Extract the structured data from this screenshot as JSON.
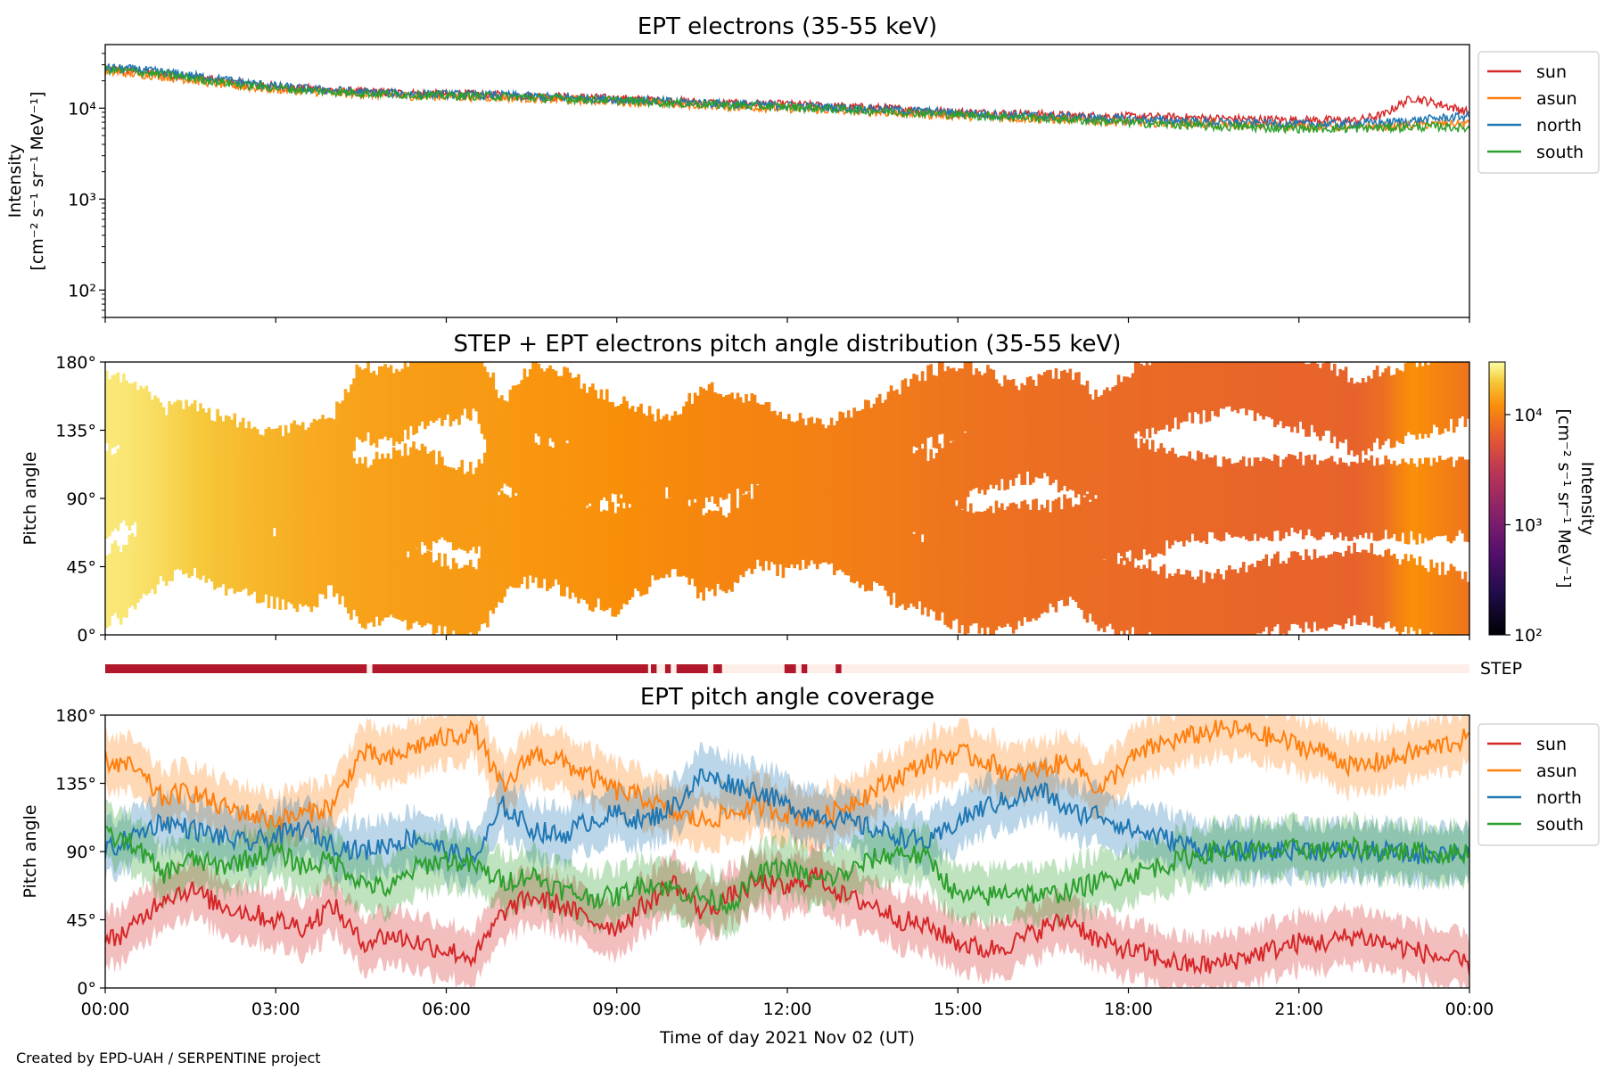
{
  "chart_data": [
    {
      "type": "line",
      "title": "EPT electrons (35-55 keV)",
      "ylabel": [
        "Intensity",
        "[cm⁻² s⁻¹ sr⁻¹ MeV⁻¹]"
      ],
      "yscale": "log",
      "ylim": [
        50,
        50000
      ],
      "yticks": [
        "10²",
        "10³",
        "10⁴"
      ],
      "xlim_hours": [
        0,
        24
      ],
      "legend_placement": "outside right, top",
      "x_hours": [
        0,
        0.5,
        1,
        1.5,
        2,
        2.5,
        3,
        3.5,
        4,
        4.5,
        5,
        5.5,
        6,
        6.5,
        7,
        7.5,
        8,
        8.5,
        9,
        9.5,
        10,
        10.5,
        11,
        11.5,
        12,
        12.5,
        13,
        13.5,
        14,
        14.5,
        15,
        15.5,
        16,
        16.5,
        17,
        17.5,
        18,
        18.5,
        19,
        19.5,
        20,
        20.5,
        21,
        21.5,
        22,
        22.5,
        23,
        23.5,
        24
      ],
      "series": [
        {
          "name": "sun",
          "color": "#d62728",
          "values": [
            27000,
            26000,
            24000,
            22000,
            20000,
            18500,
            17500,
            16500,
            15800,
            15200,
            14800,
            14500,
            14300,
            14200,
            14000,
            13600,
            13400,
            13100,
            12800,
            12400,
            12000,
            11600,
            11300,
            11100,
            11000,
            10700,
            10400,
            10100,
            9800,
            9400,
            9100,
            8900,
            8700,
            8500,
            8300,
            8200,
            8100,
            8000,
            7900,
            7700,
            7600,
            7500,
            7400,
            7400,
            7300,
            8500,
            13000,
            11000,
            9000
          ]
        },
        {
          "name": "asun",
          "color": "#ff7f0e",
          "values": [
            25000,
            24000,
            22500,
            20500,
            18500,
            17000,
            16200,
            15400,
            14800,
            14300,
            13900,
            13600,
            13400,
            13300,
            13100,
            12800,
            12500,
            12200,
            11900,
            11500,
            11100,
            10800,
            10500,
            10200,
            10000,
            9700,
            9400,
            9100,
            8800,
            8500,
            8300,
            8000,
            7800,
            7600,
            7400,
            7200,
            7000,
            6900,
            6800,
            6700,
            6600,
            6500,
            6400,
            6300,
            6200,
            6300,
            6500,
            6700,
            6800
          ]
        },
        {
          "name": "north",
          "color": "#1f77b4",
          "values": [
            28000,
            27000,
            25000,
            23000,
            21000,
            19000,
            17500,
            16500,
            15700,
            15100,
            14700,
            14400,
            14200,
            14100,
            13900,
            13500,
            13200,
            12900,
            12600,
            12200,
            11800,
            11500,
            11200,
            10900,
            10700,
            10400,
            10100,
            9800,
            9500,
            9200,
            8900,
            8600,
            8400,
            8200,
            8000,
            7800,
            7600,
            7400,
            7200,
            7000,
            6900,
            6800,
            6700,
            6700,
            6800,
            7000,
            7300,
            7800,
            8200
          ]
        },
        {
          "name": "south",
          "color": "#2ca02c",
          "values": [
            26500,
            25500,
            23500,
            21500,
            19500,
            17800,
            16800,
            15800,
            15200,
            14700,
            14300,
            14000,
            13800,
            13700,
            13500,
            13100,
            12800,
            12500,
            12200,
            11800,
            11400,
            11100,
            10800,
            10500,
            10300,
            10000,
            9700,
            9400,
            9100,
            8800,
            8500,
            8200,
            8000,
            7800,
            7500,
            7200,
            7000,
            6700,
            6500,
            6300,
            6200,
            6100,
            6000,
            6000,
            6000,
            6100,
            6200,
            6300,
            6000
          ]
        }
      ]
    },
    {
      "type": "heatmap",
      "title": "STEP + EPT electrons pitch angle distribution (35-55 keV)",
      "ylabel": "Pitch angle",
      "ylim": [
        0,
        180
      ],
      "yticks": [
        "0°",
        "45°",
        "90°",
        "135°",
        "180°"
      ],
      "colorbar": {
        "label": [
          "Intensity",
          "[cm⁻² s⁻¹ sr⁻¹ MeV⁻¹]"
        ],
        "scale": "log",
        "range": [
          100,
          30000
        ],
        "ticks": [
          "10²",
          "10³",
          "10⁴"
        ],
        "colormap": "inferno"
      },
      "note_fill_intensity_follows_top_panel": true
    },
    {
      "type": "bar",
      "label": "STEP",
      "on_color": "#b2182b",
      "off_color": "#fdeee9",
      "on_intervals_hours": [
        [
          0.0,
          4.6
        ],
        [
          4.7,
          9.55
        ],
        [
          9.6,
          9.7
        ],
        [
          9.85,
          9.95
        ],
        [
          10.05,
          10.6
        ],
        [
          10.7,
          10.85
        ],
        [
          11.95,
          12.15
        ],
        [
          12.25,
          12.35
        ],
        [
          12.85,
          12.95
        ]
      ]
    },
    {
      "type": "line",
      "title": "EPT pitch angle coverage",
      "ylabel": "Pitch angle",
      "xlabel": "Time of day 2021 Nov 02 (UT)",
      "ylim": [
        0,
        180
      ],
      "yticks": [
        "0°",
        "45°",
        "90°",
        "135°",
        "180°"
      ],
      "xticks": [
        "00:00",
        "03:00",
        "06:00",
        "09:00",
        "12:00",
        "15:00",
        "18:00",
        "21:00",
        "00:00"
      ],
      "band_halfwidth_deg": 18,
      "legend_placement": "outside right, top",
      "x_hours": [
        0,
        0.5,
        1,
        1.5,
        2,
        2.5,
        3,
        3.5,
        4,
        4.5,
        5,
        5.5,
        6,
        6.5,
        7,
        7.5,
        8,
        8.5,
        9,
        9.5,
        10,
        10.5,
        11,
        11.5,
        12,
        12.5,
        13,
        13.5,
        14,
        14.5,
        15,
        15.5,
        16,
        16.5,
        17,
        17.5,
        18,
        18.5,
        19,
        19.5,
        20,
        20.5,
        21,
        21.5,
        22,
        22.5,
        23,
        23.5,
        24
      ],
      "series": [
        {
          "name": "sun",
          "color": "#d62728",
          "values": [
            30,
            40,
            60,
            65,
            55,
            50,
            45,
            40,
            55,
            30,
            35,
            30,
            25,
            20,
            50,
            60,
            55,
            45,
            40,
            55,
            70,
            50,
            60,
            70,
            65,
            75,
            60,
            55,
            45,
            40,
            30,
            25,
            30,
            40,
            45,
            30,
            25,
            20,
            15,
            15,
            20,
            25,
            30,
            30,
            35,
            30,
            25,
            20,
            15
          ]
        },
        {
          "name": "asun",
          "color": "#ff7f0e",
          "values": [
            150,
            145,
            125,
            130,
            120,
            115,
            110,
            115,
            120,
            155,
            150,
            160,
            165,
            170,
            130,
            155,
            150,
            140,
            130,
            125,
            115,
            110,
            115,
            120,
            115,
            110,
            120,
            130,
            140,
            150,
            155,
            150,
            140,
            145,
            150,
            130,
            150,
            160,
            165,
            170,
            170,
            165,
            160,
            155,
            145,
            150,
            155,
            160,
            165
          ]
        },
        {
          "name": "north",
          "color": "#1f77b4",
          "values": [
            90,
            100,
            110,
            105,
            100,
            95,
            100,
            105,
            95,
            90,
            95,
            100,
            90,
            85,
            120,
            105,
            100,
            110,
            115,
            110,
            120,
            140,
            135,
            130,
            120,
            115,
            110,
            105,
            100,
            95,
            110,
            120,
            125,
            130,
            115,
            115,
            105,
            100,
            95,
            90,
            90,
            90,
            92,
            90,
            90,
            90,
            88,
            90,
            90
          ]
        },
        {
          "name": "south",
          "color": "#2ca02c",
          "values": [
            100,
            95,
            75,
            85,
            80,
            85,
            90,
            80,
            85,
            70,
            65,
            80,
            85,
            80,
            70,
            75,
            65,
            60,
            60,
            70,
            65,
            60,
            55,
            75,
            80,
            70,
            75,
            85,
            90,
            85,
            60,
            60,
            65,
            60,
            65,
            70,
            75,
            80,
            85,
            90,
            90,
            90,
            92,
            90,
            92,
            90,
            90,
            88,
            90
          ]
        }
      ]
    }
  ],
  "credit": "Created by EPD-UAH / SERPENTINE project"
}
